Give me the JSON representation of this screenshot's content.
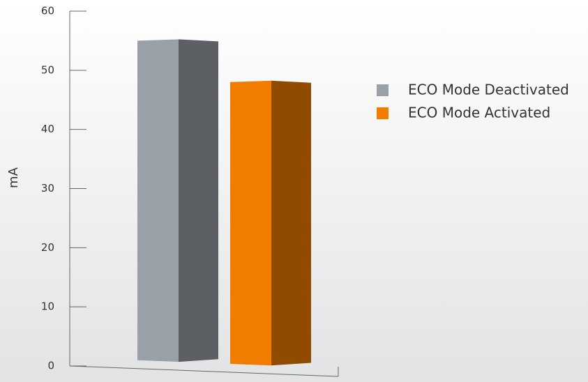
{
  "chart_data": {
    "type": "bar3d",
    "y_label": "mA",
    "categories": [
      null
    ],
    "series": [
      {
        "name": "ECO Mode Deactivated",
        "color": "#9aa0a8",
        "values": [
          55
        ]
      },
      {
        "name": "ECO Mode Activated",
        "color": "#f07d00",
        "values": [
          48
        ]
      }
    ],
    "ylim": [
      0,
      60
    ],
    "yticks": [
      0,
      10,
      20,
      30,
      40,
      50,
      60
    ]
  }
}
